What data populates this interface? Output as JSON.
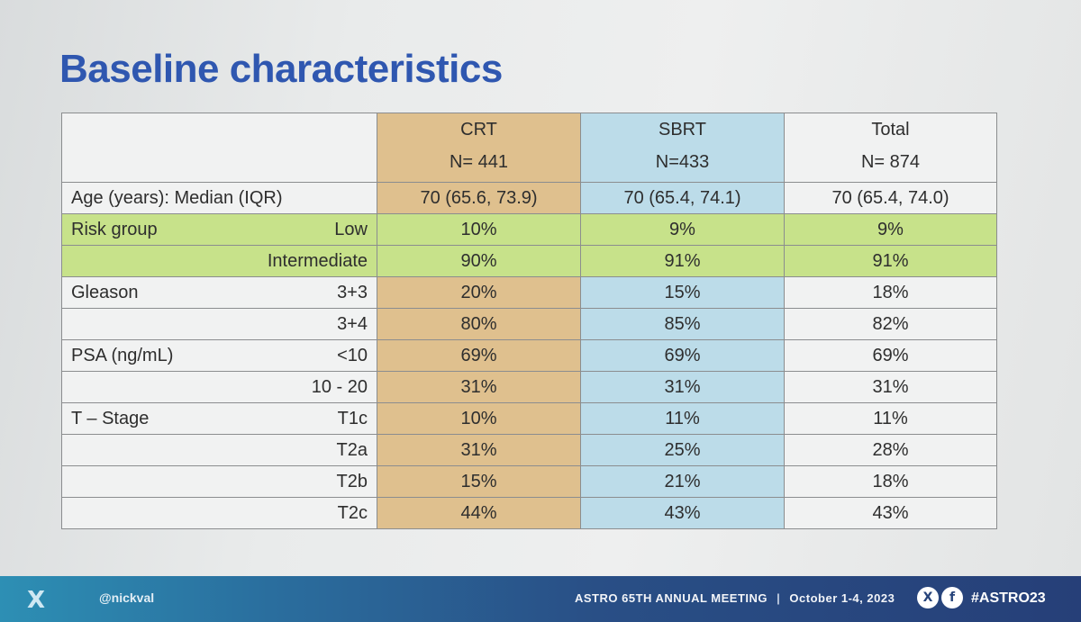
{
  "slide": {
    "title": "Baseline characteristics",
    "columns": [
      {
        "name": "CRT",
        "n": "N= 441"
      },
      {
        "name": "SBRT",
        "n": "N=433"
      },
      {
        "name": "Total",
        "n": "N= 874"
      }
    ],
    "age": {
      "label": "Age (years): Median (IQR)",
      "values": [
        "70 (65.6, 73.9)",
        "70 (65.4, 74.1)",
        "70 (65.4, 74.0)"
      ]
    },
    "groups": [
      {
        "label": "Risk group",
        "rows": [
          {
            "sub": "Low",
            "values": [
              "10%",
              "9%",
              "9%"
            ]
          },
          {
            "sub": "Intermediate",
            "values": [
              "90%",
              "91%",
              "91%"
            ]
          }
        ]
      },
      {
        "label": "Gleason",
        "rows": [
          {
            "sub": "3+3",
            "values": [
              "20%",
              "15%",
              "18%"
            ]
          },
          {
            "sub": "3+4",
            "values": [
              "80%",
              "85%",
              "82%"
            ]
          }
        ]
      },
      {
        "label": "PSA (ng/mL)",
        "rows": [
          {
            "sub": "<10",
            "values": [
              "69%",
              "69%",
              "69%"
            ]
          },
          {
            "sub": "10 - 20",
            "values": [
              "31%",
              "31%",
              "31%"
            ]
          }
        ]
      },
      {
        "label": "T – Stage",
        "rows": [
          {
            "sub": "T1c",
            "values": [
              "10%",
              "11%",
              "11%"
            ]
          },
          {
            "sub": "T2a",
            "values": [
              "31%",
              "25%",
              "28%"
            ]
          },
          {
            "sub": "T2b",
            "values": [
              "15%",
              "21%",
              "18%"
            ]
          },
          {
            "sub": "T2c",
            "values": [
              "44%",
              "43%",
              "43%"
            ]
          }
        ]
      }
    ]
  },
  "footer": {
    "x_logo": "X",
    "handle": "@nickval",
    "meeting": "ASTRO 65TH ANNUAL MEETING",
    "separator": "|",
    "dates": "October 1-4, 2023",
    "hashtag": "#ASTRO23",
    "social_x": "X",
    "social_f": "f"
  },
  "colors": {
    "title": "#2f57b0",
    "crt": "#dfc08e",
    "sbrt": "#bcdce9",
    "risk_band": "#c7e28a",
    "footer_start": "#2d8fb4",
    "footer_end": "#263f78"
  }
}
